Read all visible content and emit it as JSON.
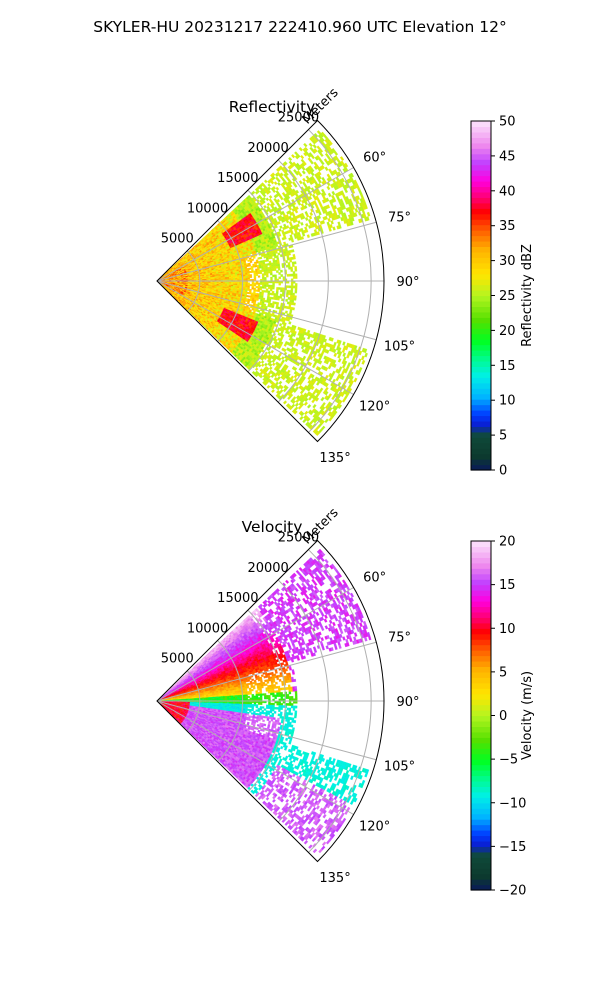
{
  "suptitle": "SKYLER-HU  20231217  222410.960 UTC Elevation 12°",
  "chart_data": [
    {
      "type": "heatmap",
      "title": "Reflectivity",
      "projection": "polar-sector",
      "theta_range_deg": [
        45,
        135
      ],
      "theta_ticks": [
        "60°",
        "75°",
        "90°",
        "105°",
        "120°",
        "135°"
      ],
      "r_ticks": [
        "5000",
        "10000",
        "15000",
        "20000",
        "25000"
      ],
      "r_max": 26500,
      "r_label": "Meters",
      "colorbar": {
        "label": "Reflectivity dBZ",
        "range": [
          0,
          50
        ],
        "ticks": [
          "0",
          "5",
          "10",
          "15",
          "20",
          "25",
          "30",
          "35",
          "40",
          "45",
          "50"
        ]
      }
    },
    {
      "type": "heatmap",
      "title": "Velocity",
      "projection": "polar-sector",
      "theta_range_deg": [
        45,
        135
      ],
      "theta_ticks": [
        "60°",
        "75°",
        "90°",
        "105°",
        "120°",
        "135°"
      ],
      "r_ticks": [
        "5000",
        "10000",
        "15000",
        "20000",
        "25000"
      ],
      "r_max": 26500,
      "r_label": "Meters",
      "colorbar": {
        "label": "Velocity (m/s)",
        "range": [
          -20,
          20
        ],
        "ticks": [
          "−20",
          "−15",
          "−10",
          "−5",
          "0",
          "5",
          "10",
          "15",
          "20"
        ]
      }
    }
  ]
}
